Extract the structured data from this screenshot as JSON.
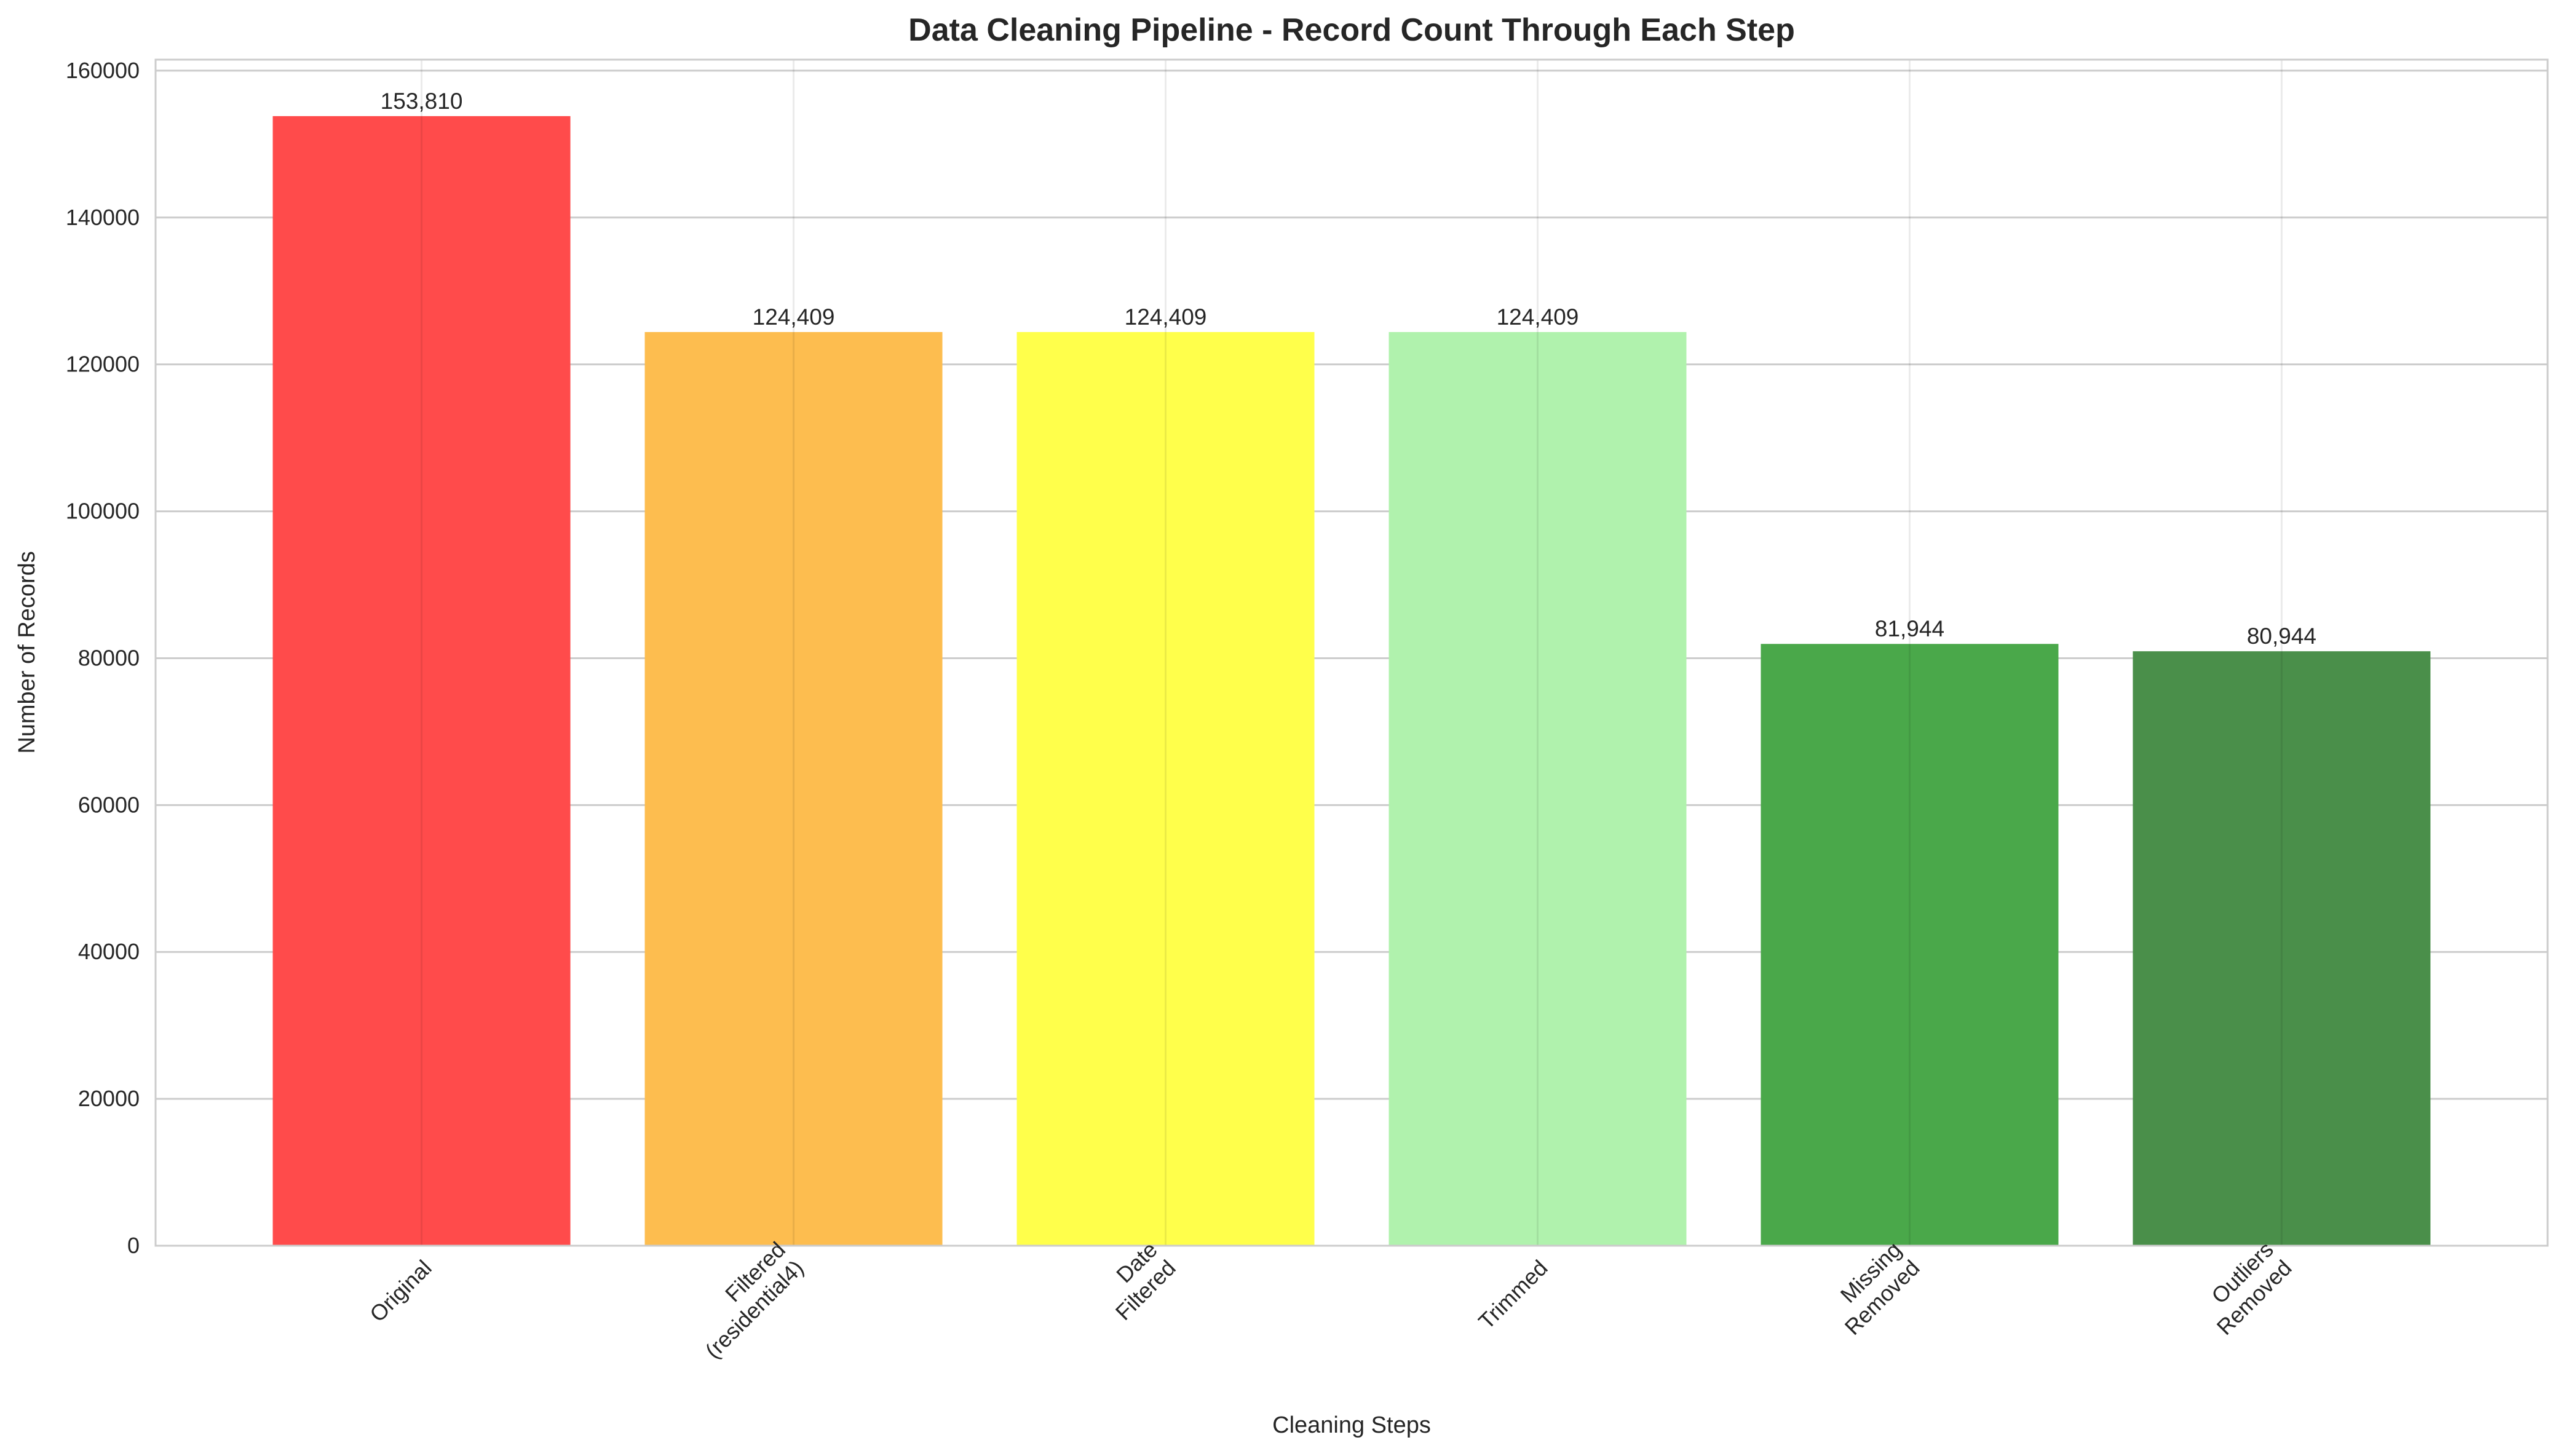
{
  "chart_data": {
    "type": "bar",
    "title": "Data Cleaning Pipeline - Record Count Through Each Step",
    "xlabel": "Cleaning Steps",
    "ylabel": "Number of Records",
    "categories": [
      [
        "Original"
      ],
      [
        "Filtered",
        "(residential4)"
      ],
      [
        "Date",
        "Filtered"
      ],
      [
        "Trimmed"
      ],
      [
        "Missing",
        "Removed"
      ],
      [
        "Outliers",
        "Removed"
      ]
    ],
    "values": [
      153810,
      124409,
      124409,
      124409,
      81944,
      80944
    ],
    "data_labels": [
      "153,810",
      "124,409",
      "124,409",
      "124,409",
      "81,944",
      "80,944"
    ],
    "colors": [
      "#ff4b4b",
      "#fdbd4f",
      "#ffff4b",
      "#b0f2ad",
      "#4aa84a",
      "#4a8f4a"
    ],
    "ylim": [
      0,
      161500
    ],
    "yticks": [
      0,
      20000,
      40000,
      60000,
      80000,
      100000,
      120000,
      140000,
      160000
    ],
    "ytick_labels": [
      "0",
      "20000",
      "40000",
      "60000",
      "80000",
      "100000",
      "120000",
      "140000",
      "160000"
    ],
    "grid": true,
    "legend": "none"
  }
}
